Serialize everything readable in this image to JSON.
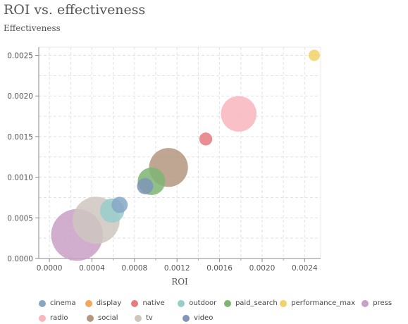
{
  "chart_data": {
    "type": "scatter",
    "title": "ROI vs. effectiveness",
    "subtitle": "Effectiveness",
    "xlabel": "ROI",
    "ylabel": "",
    "xlim": [
      -0.0001,
      0.00255
    ],
    "ylim": [
      0,
      0.0026
    ],
    "xticks": [
      "0.0000",
      "0.0004",
      "0.0008",
      "0.0012",
      "0.0016",
      "0.0020",
      "0.0024"
    ],
    "xtick_values": [
      0,
      0.0004,
      0.0008,
      0.0012,
      0.0016,
      0.002,
      0.0024
    ],
    "yticks": [
      "0.0000",
      "0.0005",
      "0.0010",
      "0.0015",
      "0.0020",
      "0.0025"
    ],
    "ytick_values": [
      0,
      0.0005,
      0.001,
      0.0015,
      0.002,
      0.0025
    ],
    "grid": true,
    "legend_position": "bottom",
    "series": [
      {
        "name": "press",
        "color": "#c9a0c6",
        "x": 0.00026,
        "y": 0.00029,
        "size": 32
      },
      {
        "name": "tv",
        "color": "#cfc6c0",
        "x": 0.00044,
        "y": 0.00047,
        "size": 29
      },
      {
        "name": "outdoor",
        "color": "#98cdcb",
        "x": 0.00059,
        "y": 0.00059,
        "size": 15
      },
      {
        "name": "cinema",
        "color": "#86a6c4",
        "x": 0.00066,
        "y": 0.00066,
        "size": 10
      },
      {
        "name": "paid_search",
        "color": "#7db573",
        "x": 0.00096,
        "y": 0.00095,
        "size": 17
      },
      {
        "name": "video",
        "color": "#7f94b8",
        "x": 0.0009,
        "y": 0.00089,
        "size": 10
      },
      {
        "name": "social",
        "color": "#b49780",
        "x": 0.00112,
        "y": 0.00112,
        "size": 24
      },
      {
        "name": "native",
        "color": "#e57b80",
        "x": 0.00147,
        "y": 0.00147,
        "size": 8
      },
      {
        "name": "radio",
        "color": "#f8b6bd",
        "x": 0.00178,
        "y": 0.00178,
        "size": 22
      },
      {
        "name": "performance_max",
        "color": "#f2d169",
        "x": 0.00249,
        "y": 0.0025,
        "size": 7
      },
      {
        "name": "display",
        "color": "#f3a65c",
        "x": 0.0,
        "y": 0.0,
        "size": 0
      }
    ],
    "legend": [
      {
        "name": "cinema",
        "color": "#86a6c4"
      },
      {
        "name": "display",
        "color": "#f3a65c"
      },
      {
        "name": "native",
        "color": "#e57b80"
      },
      {
        "name": "outdoor",
        "color": "#98cdcb"
      },
      {
        "name": "paid_search",
        "color": "#7db573"
      },
      {
        "name": "performance_max",
        "color": "#f2d169"
      },
      {
        "name": "press",
        "color": "#c9a0c6"
      },
      {
        "name": "radio",
        "color": "#f8b6bd"
      },
      {
        "name": "social",
        "color": "#b49780"
      },
      {
        "name": "tv",
        "color": "#cfc6c0"
      },
      {
        "name": "video",
        "color": "#7f94b8"
      }
    ]
  }
}
